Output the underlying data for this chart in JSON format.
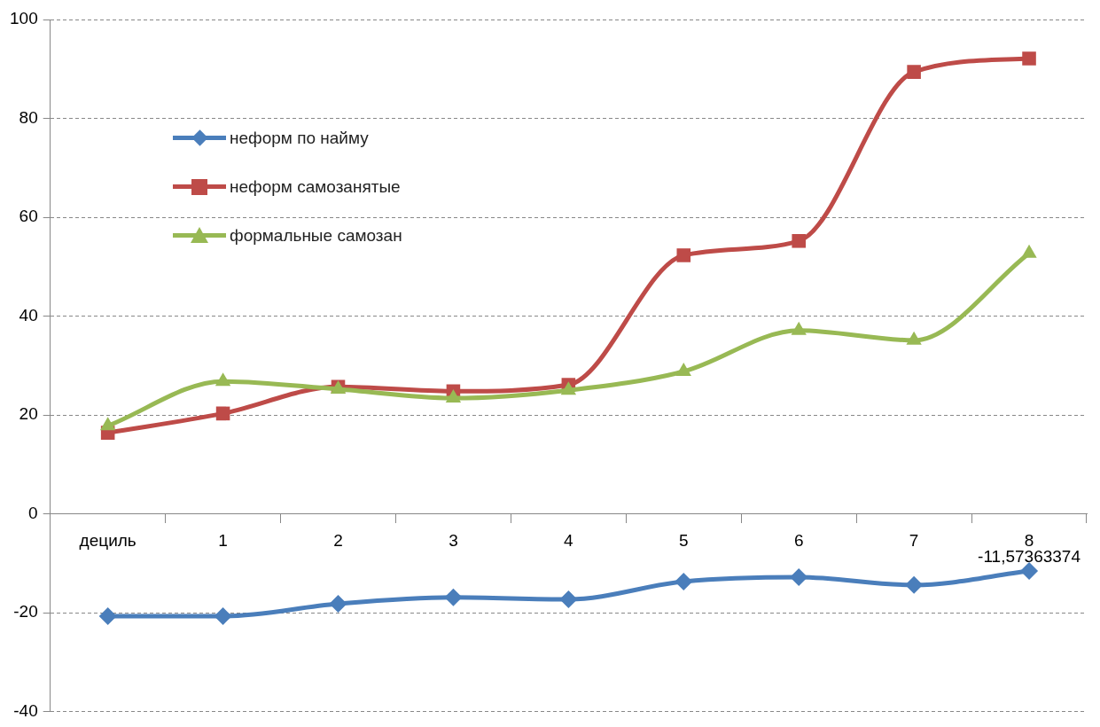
{
  "chart_data": {
    "type": "line",
    "categories": [
      "дециль",
      "1",
      "2",
      "3",
      "4",
      "5",
      "6",
      "7",
      "8"
    ],
    "series": [
      {
        "name": "неформ по найму",
        "color": "#4a7ebb",
        "marker": "diamond",
        "values": [
          -20.7,
          -20.7,
          -18.2,
          -16.9,
          -17.3,
          -13.7,
          -12.8,
          -14.4,
          -11.57363374
        ]
      },
      {
        "name": "неформ самозанятые",
        "color": "#be4b48",
        "marker": "square",
        "values": [
          16.4,
          20.3,
          25.7,
          24.8,
          26.1,
          52.3,
          55.2,
          89.4,
          92.1
        ]
      },
      {
        "name": "формальные самозан",
        "color": "#98b954",
        "marker": "triangle",
        "values": [
          17.8,
          26.8,
          25.2,
          23.4,
          25.0,
          28.8,
          37.1,
          35.1,
          52.7
        ]
      }
    ],
    "ylim": [
      -40,
      100
    ],
    "yticks": [
      -40,
      -20,
      0,
      20,
      40,
      60,
      80,
      100
    ],
    "grid": "y",
    "legend": "top left",
    "line_style": "solid",
    "annotations": [
      {
        "text": "-11,57363374",
        "x": "8",
        "y": -11.57363374
      }
    ]
  }
}
